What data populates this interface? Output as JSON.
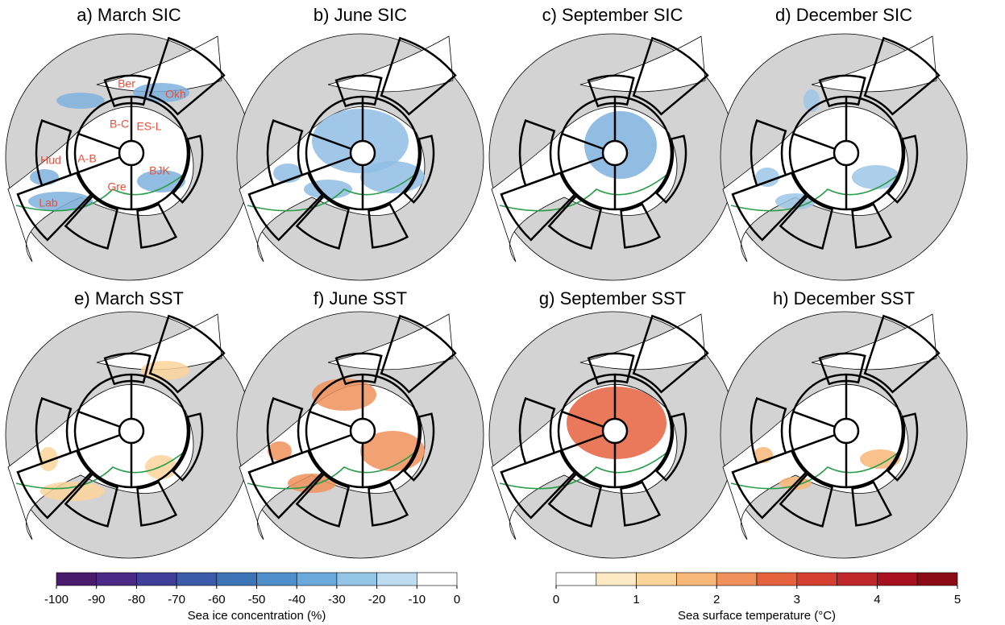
{
  "panels": [
    {
      "title": "a) March SIC"
    },
    {
      "title": "b) June SIC"
    },
    {
      "title": "c) September SIC"
    },
    {
      "title": "d) December SIC"
    },
    {
      "title": "e) March SST"
    },
    {
      "title": "f) June SST"
    },
    {
      "title": "g) September SST"
    },
    {
      "title": "h) December SST"
    }
  ],
  "region_labels": [
    "Okh",
    "Ber",
    "B-C",
    "ES-L",
    "Hud",
    "A-B",
    "BJK",
    "Gre",
    "Lab"
  ],
  "colorbars": [
    {
      "label": "Sea ice concentration (%)",
      "lim": [
        -100,
        0
      ],
      "ticks": [
        -100,
        -90,
        -80,
        -70,
        -60,
        -50,
        -40,
        -30,
        -20,
        -10,
        0
      ],
      "colors": [
        "#4a1a6b",
        "#4b2a86",
        "#3f3f99",
        "#3b5aa8",
        "#3d74b8",
        "#4f8fcc",
        "#6aaadb",
        "#94c4e6",
        "#bddcf0",
        "#ffffff"
      ]
    },
    {
      "label": "Sea surface temperature (°C)",
      "lim": [
        0,
        5
      ],
      "ticks": [
        0,
        1,
        2,
        3,
        4,
        5
      ],
      "colors": [
        "#ffffff",
        "#fde9c4",
        "#fbd49a",
        "#f8b677",
        "#f0905a",
        "#e6623f",
        "#d43f31",
        "#c0272a",
        "#a6101f",
        "#8b0a14"
      ]
    }
  ]
}
